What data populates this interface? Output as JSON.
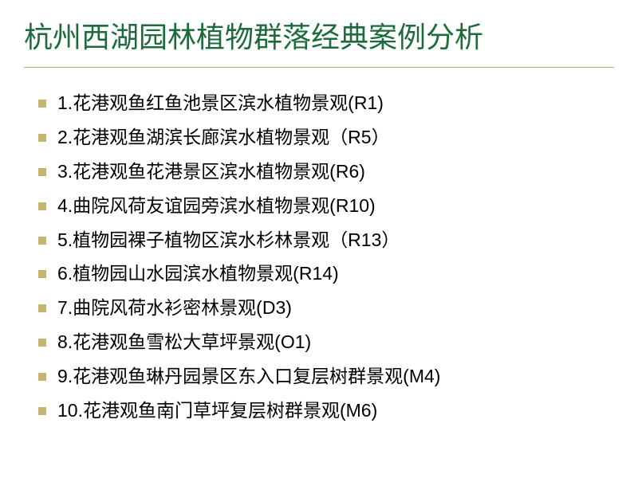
{
  "title": "杭州西湖园林植物群落经典案例分析",
  "title_color": "#1d6b3a",
  "title_fontsize": 36,
  "divider_color": "#b8a968",
  "bullet_color": "#c5b56e",
  "bullet_size": 10,
  "item_fontsize": 23,
  "item_color": "#000000",
  "background_color": "#ffffff",
  "items": [
    "1.花港观鱼红鱼池景区滨水植物景观(R1)",
    "2.花港观鱼湖滨长廊滨水植物景观（R5）",
    "3.花港观鱼花港景区滨水植物景观(R6)",
    "4.曲院风荷友谊园旁滨水植物景观(R10)",
    "5.植物园裸子植物区滨水杉林景观（R13）",
    "6.植物园山水园滨水植物景观(R14)",
    "7.曲院风荷水衫密林景观(D3)",
    "8.花港观鱼雪松大草坪景观(O1)",
    "9.花港观鱼琳丹园景区东入口复层树群景观(M4)",
    "10.花港观鱼南门草坪复层树群景观(M6)"
  ]
}
